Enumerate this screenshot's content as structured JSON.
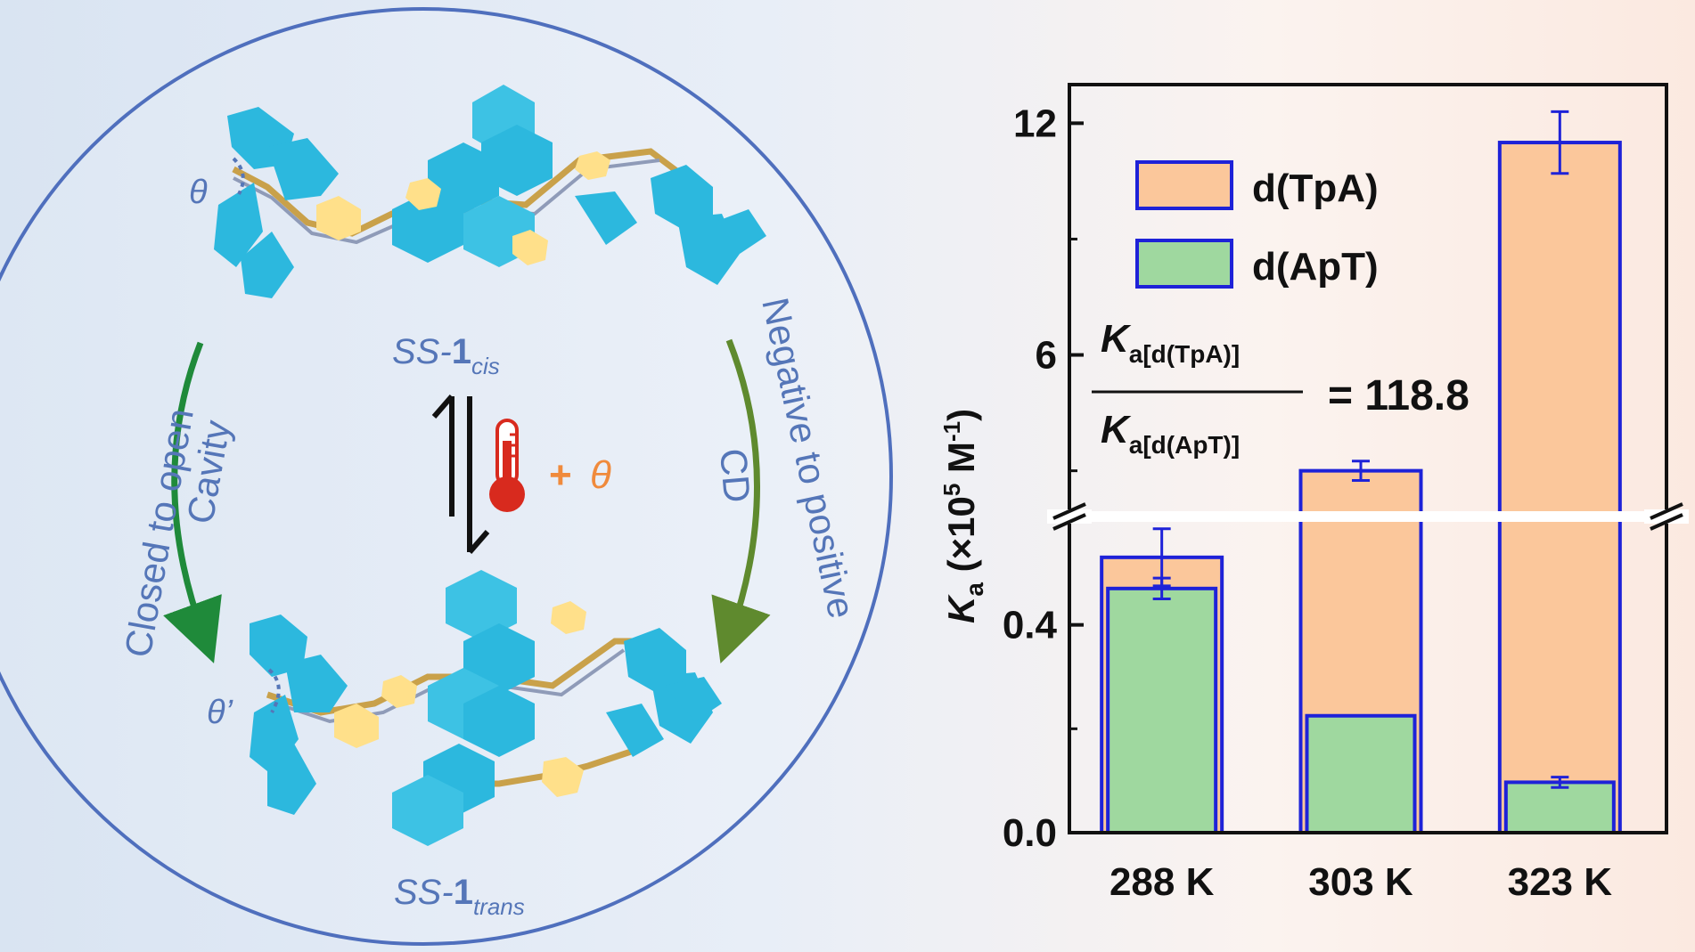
{
  "scheme": {
    "state_top": {
      "prefix": "SS-",
      "bold": "1",
      "sub": "cis"
    },
    "state_bottom": {
      "prefix": "SS-",
      "bold": "1",
      "sub": "trans"
    },
    "theta_top": "θ",
    "theta_bottom": "θ’",
    "left_arc": {
      "line1": "Closed to open",
      "line2": "Cavity"
    },
    "right_arc": {
      "line1": "Negative to positive",
      "line2": "CD"
    },
    "stimulus": {
      "plus": "+",
      "theta": "θ"
    },
    "colors": {
      "circle": "#4f6fbd",
      "text": "#5576b8",
      "molecule": "#2cb8de",
      "linker": "#ffe08a",
      "arrow_left": "#1f8a3a",
      "arrow_right": "#5f8a2e",
      "thermometer": "#d82a1e"
    }
  },
  "chart_data": {
    "type": "bar",
    "categories": [
      "288 K",
      "303 K",
      "323 K"
    ],
    "series": [
      {
        "name": "d(TpA)",
        "values": [
          0.53,
          3.0,
          11.5
        ],
        "errors": [
          0.055,
          0.25,
          0.8
        ],
        "color": "#fbc79b",
        "edge": "#1e22d8"
      },
      {
        "name": "d(ApT)",
        "values": [
          0.47,
          0.225,
          0.097
        ],
        "errors": [
          0.02,
          0.0,
          0.01
        ],
        "color": "#9fd89f",
        "edge": "#1e22d8"
      }
    ],
    "ylabel": {
      "main": "K",
      "sub": "a",
      "units_open": " (×10",
      "sup": "5",
      "units_mid": " M",
      "units_sup": "-1",
      "units_close": ")"
    },
    "yaxis_break": true,
    "ylim_lower": [
      0,
      0.6
    ],
    "ylim_upper": [
      2,
      13
    ],
    "yticks_lower": [
      0.0,
      0.4
    ],
    "yticks_upper": [
      6,
      12
    ],
    "ytick_labels": {
      "0": "0.0",
      "0.4": "0.4",
      "6": "6",
      "12": "12"
    },
    "legend_placement": "top-left",
    "ratio_annotation": {
      "num_main": "K",
      "num_sub": "a[d(TpA)]",
      "den_main": "K",
      "den_sub": "a[d(ApT)]",
      "value": "= 118.8"
    }
  }
}
